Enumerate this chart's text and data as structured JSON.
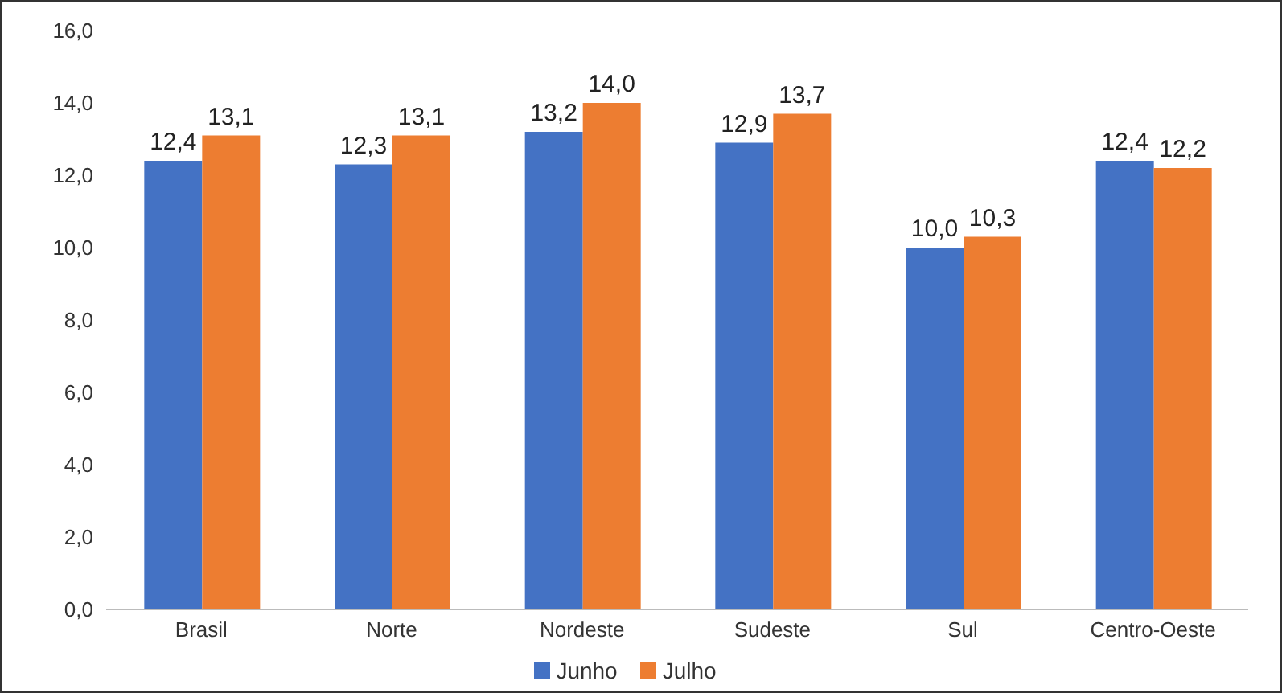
{
  "chart_data": {
    "type": "bar",
    "categories": [
      "Brasil",
      "Norte",
      "Nordeste",
      "Sudeste",
      "Sul",
      "Centro-Oeste"
    ],
    "series": [
      {
        "name": "Junho",
        "color": "#4472c4",
        "values": [
          12.4,
          12.3,
          13.2,
          12.9,
          10.0,
          12.4
        ],
        "value_labels": [
          "12,4",
          "12,3",
          "13,2",
          "12,9",
          "10,0",
          "12,4"
        ]
      },
      {
        "name": "Julho",
        "color": "#ed7d31",
        "values": [
          13.1,
          13.1,
          14.0,
          13.7,
          10.3,
          12.2
        ],
        "value_labels": [
          "13,1",
          "13,1",
          "14,0",
          "13,7",
          "10,3",
          "12,2"
        ]
      }
    ],
    "ylim": [
      0,
      16
    ],
    "yticks": [
      {
        "value": 0,
        "label": "0,0"
      },
      {
        "value": 2,
        "label": "2,0"
      },
      {
        "value": 4,
        "label": "4,0"
      },
      {
        "value": 6,
        "label": "6,0"
      },
      {
        "value": 8,
        "label": "8,0"
      },
      {
        "value": 10,
        "label": "10,0"
      },
      {
        "value": 12,
        "label": "12,0"
      },
      {
        "value": 14,
        "label": "14,0"
      },
      {
        "value": 16,
        "label": "16,0"
      }
    ],
    "legend": "bottom"
  }
}
